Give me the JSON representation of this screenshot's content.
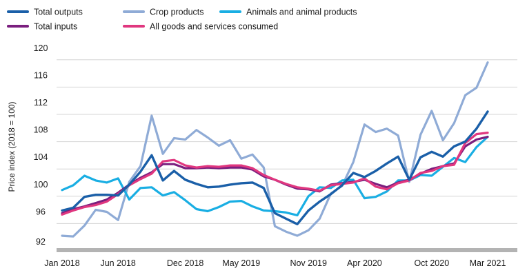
{
  "chart_data": {
    "type": "line",
    "title": "",
    "xlabel": "",
    "ylabel": "Price index (2018 = 100)",
    "ylim": [
      92,
      122
    ],
    "yticks": [
      92,
      96,
      100,
      104,
      108,
      112,
      116,
      120
    ],
    "x_tick_labels": [
      {
        "index": 0,
        "label": "Jan 2018"
      },
      {
        "index": 5,
        "label": "Jun 2018"
      },
      {
        "index": 11,
        "label": "Dec 2018"
      },
      {
        "index": 16,
        "label": "May 2019"
      },
      {
        "index": 22,
        "label": "Nov 2019"
      },
      {
        "index": 27,
        "label": "Apr 2020"
      },
      {
        "index": 33,
        "label": "Oct 2020"
      },
      {
        "index": 38,
        "label": "Mar 2021"
      }
    ],
    "months": [
      "Jan 2018",
      "Feb 2018",
      "Mar 2018",
      "Apr 2018",
      "May 2018",
      "Jun 2018",
      "Jul 2018",
      "Aug 2018",
      "Sep 2018",
      "Oct 2018",
      "Nov 2018",
      "Dec 2018",
      "Jan 2019",
      "Feb 2019",
      "Mar 2019",
      "Apr 2019",
      "May 2019",
      "Jun 2019",
      "Jul 2019",
      "Aug 2019",
      "Sep 2019",
      "Oct 2019",
      "Nov 2019",
      "Dec 2019",
      "Jan 2020",
      "Feb 2020",
      "Mar 2020",
      "Apr 2020",
      "May 2020",
      "Jun 2020",
      "Jul 2020",
      "Aug 2020",
      "Sep 2020",
      "Oct 2020",
      "Nov 2020",
      "Dec 2020",
      "Jan 2021",
      "Feb 2021",
      "Mar 2021"
    ],
    "legend_position": "top-left",
    "series": [
      {
        "name": "Total outputs",
        "color": "#1a5fa8",
        "values": [
          96.8,
          97.2,
          98.8,
          99.1,
          99.1,
          99.0,
          100.6,
          102.5,
          104.9,
          101.2,
          102.6,
          101.3,
          100.7,
          100.2,
          100.3,
          100.6,
          100.8,
          100.9,
          100.1,
          96.4,
          95.6,
          94.8,
          96.8,
          98.1,
          99.2,
          100.5,
          102.3,
          101.7,
          102.6,
          103.7,
          104.7,
          101.3,
          104.6,
          105.4,
          104.7,
          106.2,
          106.9,
          108.8,
          111.3
        ]
      },
      {
        "name": "Crop products",
        "color": "#8fabd6",
        "values": [
          93.1,
          93.0,
          94.6,
          96.9,
          96.6,
          95.4,
          101.0,
          103.3,
          110.7,
          105.1,
          107.4,
          107.2,
          108.6,
          107.5,
          106.3,
          107.1,
          104.4,
          105.0,
          103.1,
          94.5,
          93.7,
          93.1,
          93.9,
          95.6,
          99.3,
          100.4,
          103.9,
          109.4,
          108.3,
          108.8,
          107.8,
          101.0,
          107.9,
          111.4,
          107.1,
          109.6,
          113.7,
          114.8,
          118.5
        ]
      },
      {
        "name": "Animals and animal products",
        "color": "#19aee3",
        "values": [
          99.8,
          100.5,
          101.9,
          101.2,
          100.9,
          101.5,
          98.4,
          100.1,
          100.2,
          99.0,
          99.5,
          98.3,
          97.0,
          96.7,
          97.3,
          98.1,
          98.2,
          97.4,
          96.8,
          96.7,
          96.5,
          96.1,
          98.9,
          100.2,
          100.1,
          101.2,
          101.3,
          98.6,
          98.8,
          99.6,
          101.2,
          101.2,
          102.0,
          101.9,
          103.2,
          104.5,
          103.9,
          106.1,
          107.6
        ]
      },
      {
        "name": "Total inputs",
        "color": "#7a1e7e",
        "values": [
          96.4,
          97.0,
          97.4,
          97.9,
          98.4,
          99.4,
          100.6,
          101.6,
          102.4,
          103.6,
          103.6,
          103.0,
          103.0,
          103.1,
          103.0,
          103.1,
          103.1,
          102.8,
          101.8,
          101.3,
          100.6,
          100.0,
          99.9,
          99.6,
          100.6,
          100.8,
          101.0,
          101.3,
          100.7,
          100.2,
          100.9,
          101.3,
          102.2,
          102.9,
          103.3,
          103.7,
          106.2,
          107.2,
          107.6
        ]
      },
      {
        "name": "All goods and services consumed",
        "color": "#e0377f",
        "values": [
          96.2,
          96.8,
          97.3,
          97.6,
          98.1,
          99.2,
          100.5,
          101.4,
          102.2,
          104.0,
          104.2,
          103.4,
          103.1,
          103.3,
          103.2,
          103.4,
          103.4,
          103.0,
          102.0,
          101.3,
          100.7,
          100.2,
          100.0,
          99.7,
          100.5,
          100.7,
          100.9,
          101.5,
          100.3,
          99.9,
          100.8,
          101.2,
          102.3,
          102.6,
          103.3,
          103.5,
          106.7,
          108.0,
          108.2
        ]
      }
    ]
  }
}
